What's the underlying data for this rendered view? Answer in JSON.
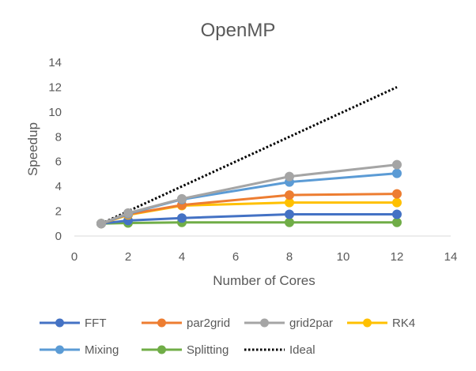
{
  "chart_data": {
    "type": "scatter",
    "title": "OpenMP",
    "xlabel": "Number of Cores",
    "ylabel": "Speedup",
    "xlim": [
      0,
      14
    ],
    "ylim": [
      0,
      14
    ],
    "xticks": [
      0,
      2,
      4,
      6,
      8,
      10,
      12,
      14
    ],
    "yticks": [
      0,
      2,
      4,
      6,
      8,
      10,
      12,
      14
    ],
    "grid": false,
    "legend_position": "bottom",
    "series": [
      {
        "name": "FFT",
        "color": "#4472C4",
        "style": "solid",
        "markers": true,
        "x": [
          1,
          2,
          4,
          8,
          12
        ],
        "y": [
          1.0,
          1.25,
          1.45,
          1.75,
          1.75
        ]
      },
      {
        "name": "par2grid",
        "color": "#ED7D31",
        "style": "solid",
        "markers": true,
        "x": [
          1,
          2,
          4,
          8,
          12
        ],
        "y": [
          1.0,
          1.75,
          2.5,
          3.3,
          3.4
        ]
      },
      {
        "name": "grid2par",
        "color": "#A5A5A5",
        "style": "solid",
        "markers": true,
        "x": [
          1,
          2,
          4,
          8,
          12
        ],
        "y": [
          1.0,
          1.85,
          3.0,
          4.8,
          5.75
        ]
      },
      {
        "name": "RK4",
        "color": "#FFC000",
        "style": "solid",
        "markers": true,
        "x": [
          1,
          2,
          4,
          8,
          12
        ],
        "y": [
          1.0,
          1.7,
          2.45,
          2.7,
          2.7
        ]
      },
      {
        "name": "Mixing",
        "color": "#5B9BD5",
        "style": "solid",
        "markers": true,
        "x": [
          1,
          2,
          4,
          8,
          12
        ],
        "y": [
          1.0,
          1.8,
          2.95,
          4.35,
          5.05
        ]
      },
      {
        "name": "Splitting",
        "color": "#70AD47",
        "style": "solid",
        "markers": true,
        "x": [
          1,
          2,
          4,
          8,
          12
        ],
        "y": [
          1.0,
          1.05,
          1.1,
          1.1,
          1.1
        ]
      },
      {
        "name": "Ideal",
        "color": "#000000",
        "style": "dotted",
        "markers": false,
        "x": [
          1,
          12
        ],
        "y": [
          1,
          12
        ]
      }
    ]
  }
}
